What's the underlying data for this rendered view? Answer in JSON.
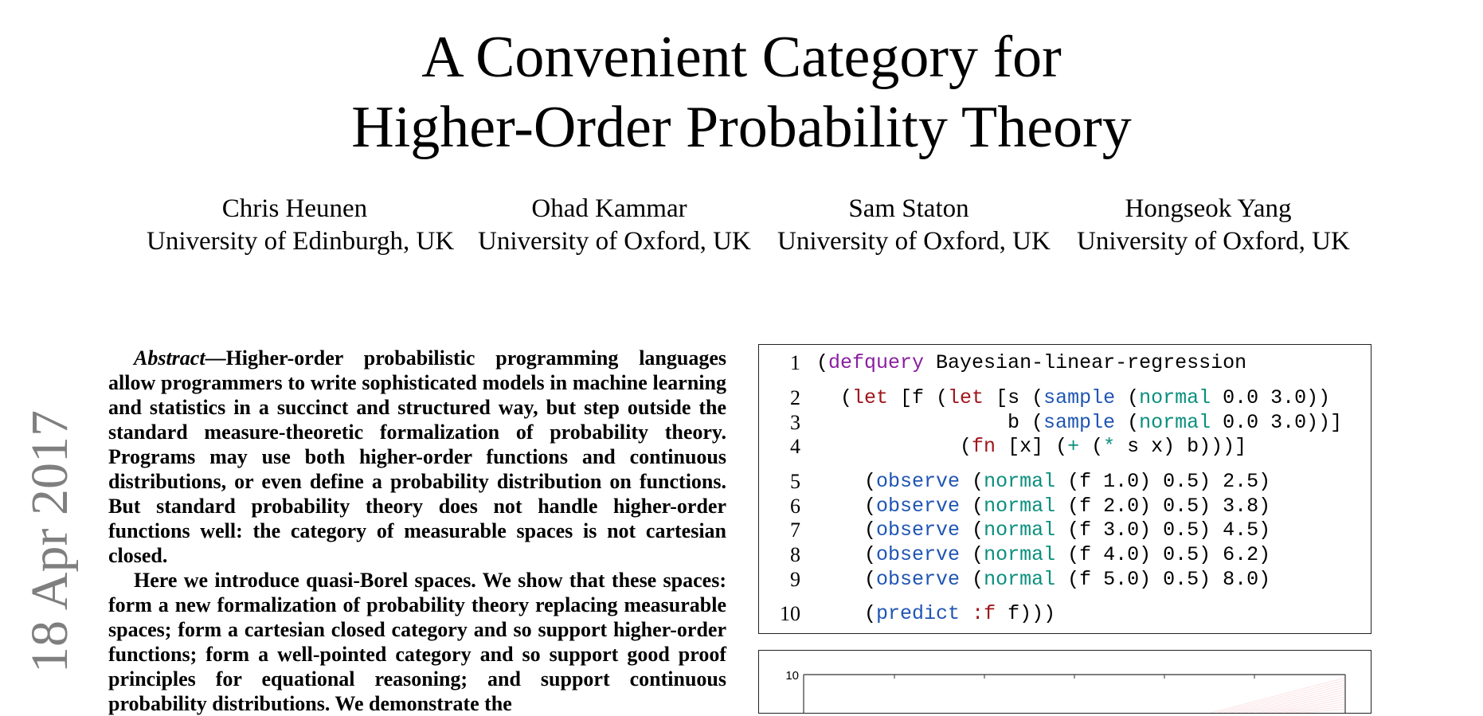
{
  "paper": {
    "title_line1": "A Convenient Category for",
    "title_line2": "Higher-Order Probability Theory",
    "authors": [
      {
        "name": "Chris Heunen",
        "affiliation": "University of Edinburgh, UK"
      },
      {
        "name": "Ohad Kammar",
        "affiliation": "University of Oxford, UK"
      },
      {
        "name": "Sam Staton",
        "affiliation": "University of Oxford, UK"
      },
      {
        "name": "Hongseok Yang",
        "affiliation": "University of Oxford, UK"
      }
    ],
    "side_date": "18 Apr 2017",
    "abstract": {
      "label": "Abstract",
      "p1": "—Higher-order probabilistic programming languages allow programmers to write sophisticated models in machine learning and statistics in a succinct and structured way, but step outside the standard measure-theoretic formalization of probability theory. Programs may use both higher-order functions and continuous distributions, or even define a probability distribution on functions. But standard probability theory does not handle higher-order functions well: the category of measurable spaces is not cartesian closed.",
      "p2": "Here we introduce quasi-Borel spaces. We show that these spaces: form a new formalization of probability theory replacing measurable spaces; form a cartesian closed category and so support higher-order functions; form a well-pointed category and so support good proof principles for equational reasoning; and support continuous probability distributions. We demonstrate the"
    }
  },
  "code": {
    "lines": [
      {
        "num": "1",
        "tokens": [
          [
            "(",
            ""
          ],
          [
            "defquery",
            "purple"
          ],
          [
            " Bayesian-linear-regression",
            ""
          ]
        ]
      },
      {
        "num": "2",
        "tokens": [
          [
            "  (",
            ""
          ],
          [
            "let",
            "red"
          ],
          [
            " [f (",
            ""
          ],
          [
            "let",
            "red"
          ],
          [
            " [s (",
            ""
          ],
          [
            "sample",
            "blue"
          ],
          [
            " (",
            ""
          ],
          [
            "normal",
            "teal"
          ],
          [
            " 0.0 3.0))",
            ""
          ]
        ]
      },
      {
        "num": "3",
        "tokens": [
          [
            "                b (",
            ""
          ],
          [
            "sample",
            "blue"
          ],
          [
            " (",
            ""
          ],
          [
            "normal",
            "teal"
          ],
          [
            " 0.0 3.0))]",
            ""
          ]
        ]
      },
      {
        "num": "4",
        "tokens": [
          [
            "            (",
            ""
          ],
          [
            "fn",
            "red"
          ],
          [
            " [x] (",
            ""
          ],
          [
            "+",
            "teal"
          ],
          [
            " (",
            ""
          ],
          [
            "*",
            "teal"
          ],
          [
            " s x) b)))]",
            ""
          ]
        ]
      },
      {
        "num": "5",
        "tokens": [
          [
            "    (",
            ""
          ],
          [
            "observe",
            "blue"
          ],
          [
            " (",
            ""
          ],
          [
            "normal",
            "teal"
          ],
          [
            " (f 1.0) 0.5) 2.5)",
            ""
          ]
        ]
      },
      {
        "num": "6",
        "tokens": [
          [
            "    (",
            ""
          ],
          [
            "observe",
            "blue"
          ],
          [
            " (",
            ""
          ],
          [
            "normal",
            "teal"
          ],
          [
            " (f 2.0) 0.5) 3.8)",
            ""
          ]
        ]
      },
      {
        "num": "7",
        "tokens": [
          [
            "    (",
            ""
          ],
          [
            "observe",
            "blue"
          ],
          [
            " (",
            ""
          ],
          [
            "normal",
            "teal"
          ],
          [
            " (f 3.0) 0.5) 4.5)",
            ""
          ]
        ]
      },
      {
        "num": "8",
        "tokens": [
          [
            "    (",
            ""
          ],
          [
            "observe",
            "blue"
          ],
          [
            " (",
            ""
          ],
          [
            "normal",
            "teal"
          ],
          [
            " (f 4.0) 0.5) 6.2)",
            ""
          ]
        ]
      },
      {
        "num": "9",
        "tokens": [
          [
            "    (",
            ""
          ],
          [
            "observe",
            "blue"
          ],
          [
            " (",
            ""
          ],
          [
            "normal",
            "teal"
          ],
          [
            " (f 5.0) 0.5) 8.0)",
            ""
          ]
        ]
      },
      {
        "num": "10",
        "tokens": [
          [
            "    (",
            ""
          ],
          [
            "predict",
            "blue"
          ],
          [
            " ",
            ""
          ],
          [
            ":f",
            "red"
          ],
          [
            " f)))",
            ""
          ]
        ]
      }
    ]
  },
  "figure": {
    "y_tick_label": "10"
  },
  "colors": {
    "side_date": "#7f7f7f",
    "code_purple": "#8a1fa0",
    "code_red": "#a0161c",
    "code_blue": "#1f55b3",
    "code_teal": "#0b8f7e",
    "plot_lines": "#e8434f"
  }
}
